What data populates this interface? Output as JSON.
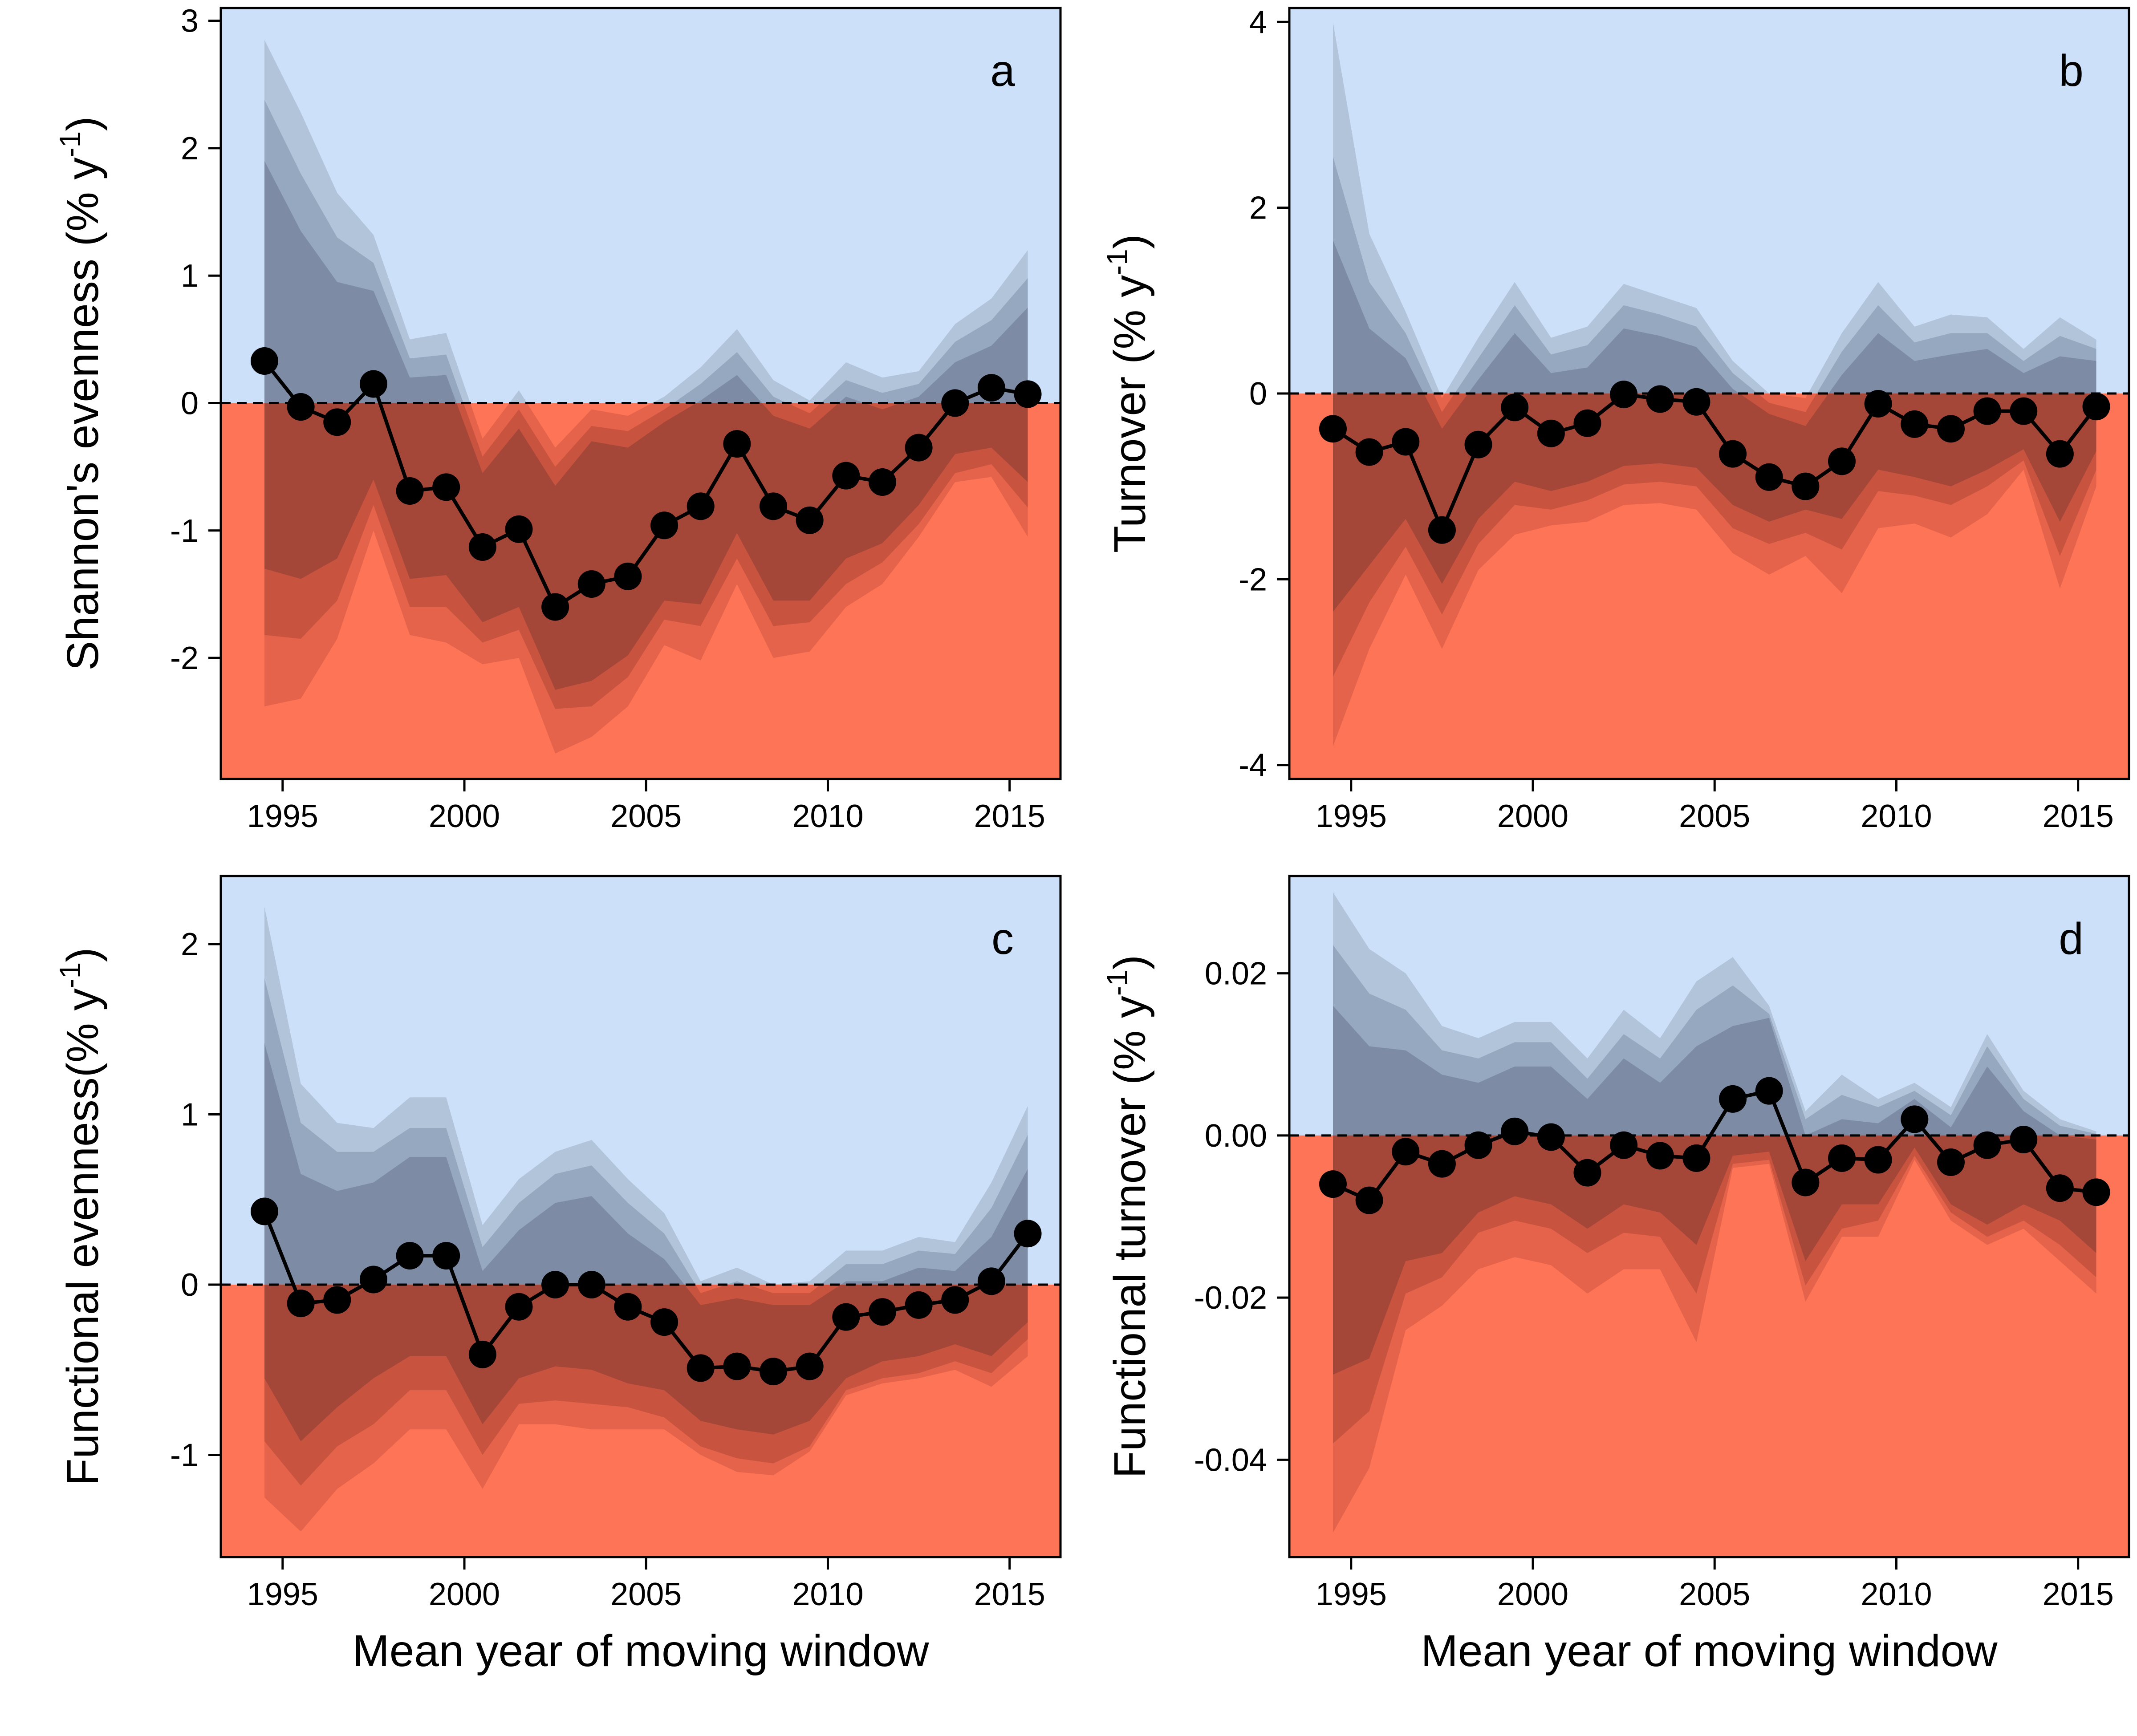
{
  "colors": {
    "positive_region": "#cce0fa",
    "negative_region": "#fe7456",
    "pos_band_outer": "#b2c4d9",
    "pos_band_mid": "#95a8c0",
    "pos_band_inner": "#7d8ba5",
    "neg_band_outer": "#e4634a",
    "neg_band_mid": "#c8533f",
    "neg_band_inner": "#a44738",
    "points": "#000000"
  },
  "chart_data": [
    {
      "panel": "a",
      "type": "line",
      "ylabel": "Shannon's evenness (% y",
      "ylabel_sup": "-1",
      "ylabel_end": ")",
      "xlabel": "",
      "xlim": [
        1993.3,
        2016.4
      ],
      "ylim": [
        -2.95,
        3.1
      ],
      "xticks": [
        1995,
        2000,
        2005,
        2010,
        2015
      ],
      "yticks": [
        -2,
        -1,
        0,
        1,
        2,
        3
      ],
      "ytick_labels": [
        "-2",
        "-1",
        "0",
        "1",
        "2",
        "3"
      ],
      "x": [
        1994.5,
        1995.5,
        1996.5,
        1997.5,
        1998.5,
        1999.5,
        2000.5,
        2001.5,
        2002.5,
        2003.5,
        2004.5,
        2005.5,
        2006.5,
        2007.5,
        2008.5,
        2009.5,
        2010.5,
        2011.5,
        2012.5,
        2013.5,
        2014.5,
        2015.5
      ],
      "values": [
        0.33,
        -0.03,
        -0.15,
        0.15,
        -0.69,
        -0.66,
        -1.13,
        -0.99,
        -1.6,
        -1.42,
        -1.36,
        -0.96,
        -0.81,
        -0.32,
        -0.81,
        -0.92,
        -0.57,
        -0.62,
        -0.35,
        0.0,
        0.12,
        0.07
      ],
      "band_outer_hi": [
        2.85,
        2.28,
        1.65,
        1.32,
        0.5,
        0.55,
        -0.28,
        0.1,
        -0.35,
        -0.05,
        -0.1,
        0.05,
        0.28,
        0.58,
        0.18,
        0.02,
        0.32,
        0.2,
        0.25,
        0.62,
        0.82,
        1.2
      ],
      "band_mid_hi": [
        2.38,
        1.8,
        1.3,
        1.1,
        0.35,
        0.38,
        -0.42,
        -0.05,
        -0.5,
        -0.18,
        -0.22,
        -0.05,
        0.15,
        0.4,
        0.05,
        -0.08,
        0.18,
        0.08,
        0.15,
        0.48,
        0.65,
        0.98
      ],
      "band_inner_hi": [
        1.9,
        1.35,
        0.95,
        0.88,
        0.2,
        0.22,
        -0.55,
        -0.2,
        -0.65,
        -0.3,
        -0.35,
        -0.15,
        0.02,
        0.22,
        -0.1,
        -0.2,
        0.05,
        -0.05,
        0.05,
        0.32,
        0.45,
        0.75
      ],
      "band_inner_lo": [
        -1.3,
        -1.38,
        -1.22,
        -0.6,
        -1.38,
        -1.35,
        -1.72,
        -1.6,
        -2.25,
        -2.18,
        -1.98,
        -1.55,
        -1.58,
        -1.02,
        -1.55,
        -1.55,
        -1.22,
        -1.1,
        -0.8,
        -0.4,
        -0.35,
        -0.62
      ],
      "band_mid_lo": [
        -1.82,
        -1.85,
        -1.55,
        -0.8,
        -1.6,
        -1.6,
        -1.88,
        -1.78,
        -2.4,
        -2.38,
        -2.15,
        -1.7,
        -1.75,
        -1.22,
        -1.75,
        -1.72,
        -1.42,
        -1.25,
        -0.95,
        -0.55,
        -0.48,
        -0.82
      ],
      "band_outer_lo": [
        -2.38,
        -2.32,
        -1.85,
        -1.0,
        -1.82,
        -1.88,
        -2.05,
        -2.0,
        -2.75,
        -2.62,
        -2.38,
        -1.9,
        -2.02,
        -1.42,
        -2.0,
        -1.95,
        -1.6,
        -1.42,
        -1.05,
        -0.62,
        -0.58,
        -1.05
      ]
    },
    {
      "panel": "b",
      "type": "line",
      "ylabel": "Turnover  (% y",
      "ylabel_sup": "-1",
      "ylabel_end": ")",
      "xlabel": "",
      "xlim": [
        1993.3,
        2016.4
      ],
      "ylim": [
        -4.15,
        4.15
      ],
      "xticks": [
        1995,
        2000,
        2005,
        2010,
        2015
      ],
      "yticks": [
        -4,
        -2,
        0,
        2,
        4
      ],
      "ytick_labels": [
        "-4",
        "-2",
        "0",
        "2",
        "4"
      ],
      "x": [
        1994.5,
        1995.5,
        1996.5,
        1997.5,
        1998.5,
        1999.5,
        2000.5,
        2001.5,
        2002.5,
        2003.5,
        2004.5,
        2005.5,
        2006.5,
        2007.5,
        2008.5,
        2009.5,
        2010.5,
        2011.5,
        2012.5,
        2013.5,
        2014.5,
        2015.5
      ],
      "values": [
        -0.38,
        -0.63,
        -0.52,
        -1.47,
        -0.55,
        -0.15,
        -0.43,
        -0.32,
        -0.01,
        -0.06,
        -0.09,
        -0.65,
        -0.9,
        -1.0,
        -0.73,
        -0.11,
        -0.33,
        -0.38,
        -0.19,
        -0.19,
        -0.65,
        -0.14
      ],
      "band_outer_hi": [
        4.0,
        1.72,
        0.88,
        -0.05,
        0.6,
        1.2,
        0.6,
        0.72,
        1.18,
        1.05,
        0.92,
        0.35,
        0.0,
        -0.05,
        0.65,
        1.2,
        0.72,
        0.85,
        0.82,
        0.48,
        0.82,
        0.58
      ],
      "band_mid_hi": [
        2.55,
        1.2,
        0.65,
        -0.2,
        0.38,
        0.95,
        0.42,
        0.52,
        0.95,
        0.85,
        0.72,
        0.22,
        -0.1,
        -0.2,
        0.45,
        0.95,
        0.55,
        0.65,
        0.65,
        0.35,
        0.62,
        0.48
      ],
      "band_inner_hi": [
        1.65,
        0.7,
        0.38,
        -0.38,
        0.15,
        0.65,
        0.22,
        0.28,
        0.7,
        0.62,
        0.5,
        0.05,
        -0.22,
        -0.35,
        0.2,
        0.65,
        0.35,
        0.42,
        0.48,
        0.22,
        0.4,
        0.35
      ],
      "band_inner_lo": [
        -2.35,
        -1.85,
        -1.35,
        -2.05,
        -1.35,
        -0.95,
        -1.05,
        -0.95,
        -0.78,
        -0.75,
        -0.8,
        -1.2,
        -1.38,
        -1.25,
        -1.35,
        -0.82,
        -0.9,
        -1.0,
        -0.82,
        -0.6,
        -1.38,
        -0.62
      ],
      "band_mid_lo": [
        -3.05,
        -2.25,
        -1.65,
        -2.38,
        -1.62,
        -1.2,
        -1.25,
        -1.15,
        -0.98,
        -0.95,
        -1.0,
        -1.45,
        -1.62,
        -1.5,
        -1.68,
        -1.05,
        -1.1,
        -1.2,
        -1.0,
        -0.72,
        -1.75,
        -0.82
      ],
      "band_outer_lo": [
        -3.8,
        -2.75,
        -1.95,
        -2.75,
        -1.9,
        -1.52,
        -1.42,
        -1.38,
        -1.2,
        -1.18,
        -1.25,
        -1.72,
        -1.95,
        -1.75,
        -2.15,
        -1.45,
        -1.4,
        -1.55,
        -1.3,
        -0.82,
        -2.1,
        -1.0
      ]
    },
    {
      "panel": "c",
      "type": "line",
      "ylabel": "Functional evenness(% y",
      "ylabel_sup": "-1",
      "ylabel_end": ")",
      "xlabel": "Mean year of moving window",
      "xlim": [
        1993.3,
        2016.4
      ],
      "ylim": [
        -1.6,
        2.4
      ],
      "xticks": [
        1995,
        2000,
        2005,
        2010,
        2015
      ],
      "yticks": [
        -1,
        0,
        1,
        2
      ],
      "ytick_labels": [
        "-1",
        "0",
        "1",
        "2"
      ],
      "x": [
        1994.5,
        1995.5,
        1996.5,
        1997.5,
        1998.5,
        1999.5,
        2000.5,
        2001.5,
        2002.5,
        2003.5,
        2004.5,
        2005.5,
        2006.5,
        2007.5,
        2008.5,
        2009.5,
        2010.5,
        2011.5,
        2012.5,
        2013.5,
        2014.5,
        2015.5
      ],
      "values": [
        0.43,
        -0.11,
        -0.09,
        0.03,
        0.17,
        0.17,
        -0.41,
        -0.13,
        0.0,
        0.0,
        -0.13,
        -0.22,
        -0.49,
        -0.48,
        -0.51,
        -0.48,
        -0.19,
        -0.16,
        -0.12,
        -0.09,
        0.02,
        0.3
      ],
      "band_outer_hi": [
        2.22,
        1.18,
        0.95,
        0.92,
        1.1,
        1.1,
        0.35,
        0.62,
        0.78,
        0.85,
        0.62,
        0.42,
        0.02,
        0.1,
        0.0,
        0.02,
        0.2,
        0.2,
        0.28,
        0.25,
        0.6,
        1.05
      ],
      "band_mid_hi": [
        1.8,
        0.95,
        0.78,
        0.78,
        0.92,
        0.92,
        0.22,
        0.48,
        0.65,
        0.7,
        0.48,
        0.3,
        -0.05,
        0.02,
        -0.05,
        -0.05,
        0.12,
        0.12,
        0.2,
        0.18,
        0.45,
        0.88
      ],
      "band_inner_hi": [
        1.42,
        0.65,
        0.55,
        0.6,
        0.75,
        0.75,
        0.08,
        0.32,
        0.48,
        0.52,
        0.3,
        0.15,
        -0.12,
        -0.08,
        -0.12,
        -0.12,
        0.02,
        0.02,
        0.1,
        0.08,
        0.28,
        0.68
      ],
      "band_inner_lo": [
        -0.55,
        -0.92,
        -0.72,
        -0.55,
        -0.42,
        -0.42,
        -0.82,
        -0.55,
        -0.48,
        -0.5,
        -0.58,
        -0.62,
        -0.8,
        -0.85,
        -0.88,
        -0.8,
        -0.55,
        -0.45,
        -0.42,
        -0.35,
        -0.42,
        -0.22
      ],
      "band_mid_lo": [
        -0.92,
        -1.18,
        -0.95,
        -0.82,
        -0.62,
        -0.62,
        -1.0,
        -0.7,
        -0.68,
        -0.7,
        -0.72,
        -0.78,
        -0.95,
        -1.02,
        -1.05,
        -0.95,
        -0.62,
        -0.55,
        -0.52,
        -0.45,
        -0.52,
        -0.32
      ],
      "band_outer_lo": [
        -1.25,
        -1.45,
        -1.2,
        -1.05,
        -0.85,
        -0.85,
        -1.2,
        -0.82,
        -0.82,
        -0.85,
        -0.85,
        -0.85,
        -1.0,
        -1.1,
        -1.12,
        -0.98,
        -0.65,
        -0.58,
        -0.55,
        -0.5,
        -0.6,
        -0.42
      ]
    },
    {
      "panel": "d",
      "type": "line",
      "ylabel": "Functional turnover  (% y",
      "ylabel_sup": "-1",
      "ylabel_end": ")",
      "xlabel": "Mean year of moving window",
      "xlim": [
        1993.3,
        2016.4
      ],
      "ylim": [
        -0.052,
        0.032
      ],
      "xticks": [
        1995,
        2000,
        2005,
        2010,
        2015
      ],
      "yticks": [
        -0.04,
        -0.02,
        0.0,
        0.02
      ],
      "ytick_labels": [
        "-0.04",
        "-0.02",
        "0.00",
        "0.02"
      ],
      "x": [
        1994.5,
        1995.5,
        1996.5,
        1997.5,
        1998.5,
        1999.5,
        2000.5,
        2001.5,
        2002.5,
        2003.5,
        2004.5,
        2005.5,
        2006.5,
        2007.5,
        2008.5,
        2009.5,
        2010.5,
        2011.5,
        2012.5,
        2013.5,
        2014.5,
        2015.5
      ],
      "values": [
        -0.006,
        -0.008,
        -0.002,
        -0.0035,
        -0.0012,
        0.0005,
        -0.0002,
        -0.0046,
        -0.0012,
        -0.0025,
        -0.0028,
        0.0045,
        0.0055,
        -0.0058,
        -0.0028,
        -0.003,
        0.002,
        -0.0033,
        -0.0012,
        -0.0005,
        -0.0065,
        -0.007
      ],
      "band_outer_hi": [
        0.03,
        0.023,
        0.02,
        0.0135,
        0.012,
        0.014,
        0.014,
        0.0095,
        0.0155,
        0.012,
        0.019,
        0.022,
        0.016,
        0.003,
        0.0075,
        0.0045,
        0.0065,
        0.0035,
        0.0125,
        0.0055,
        0.002,
        0.0005
      ],
      "band_mid_hi": [
        0.0235,
        0.0175,
        0.0155,
        0.0105,
        0.0095,
        0.0115,
        0.0115,
        0.007,
        0.0125,
        0.0095,
        0.0155,
        0.0185,
        0.015,
        0.002,
        0.005,
        0.0035,
        0.0055,
        0.0025,
        0.011,
        0.0045,
        0.0012,
        0.0002
      ],
      "band_inner_hi": [
        0.016,
        0.011,
        0.0105,
        0.0075,
        0.0065,
        0.0085,
        0.0085,
        0.0045,
        0.0095,
        0.0065,
        0.011,
        0.0135,
        0.0145,
        0.0,
        0.002,
        0.0015,
        0.0045,
        0.001,
        0.0085,
        0.003,
        0.0,
        -0.0005
      ],
      "band_inner_lo": [
        -0.0295,
        -0.0275,
        -0.0155,
        -0.0145,
        -0.0095,
        -0.0075,
        -0.0085,
        -0.0115,
        -0.0085,
        -0.0095,
        -0.0135,
        -0.0025,
        -0.002,
        -0.0155,
        -0.0085,
        -0.0085,
        -0.0015,
        -0.0085,
        -0.011,
        -0.0085,
        -0.0105,
        -0.0145
      ],
      "band_mid_lo": [
        -0.038,
        -0.034,
        -0.0195,
        -0.0175,
        -0.012,
        -0.0105,
        -0.0115,
        -0.0145,
        -0.012,
        -0.0125,
        -0.0195,
        -0.0035,
        -0.003,
        -0.0185,
        -0.0115,
        -0.0105,
        -0.0025,
        -0.0095,
        -0.0125,
        -0.0105,
        -0.0135,
        -0.0175
      ],
      "band_outer_lo": [
        -0.049,
        -0.041,
        -0.024,
        -0.021,
        -0.0165,
        -0.015,
        -0.016,
        -0.0195,
        -0.0165,
        -0.0165,
        -0.0255,
        -0.004,
        -0.0035,
        -0.0205,
        -0.0125,
        -0.0125,
        -0.003,
        -0.0105,
        -0.0135,
        -0.0115,
        -0.0155,
        -0.0195
      ]
    }
  ]
}
